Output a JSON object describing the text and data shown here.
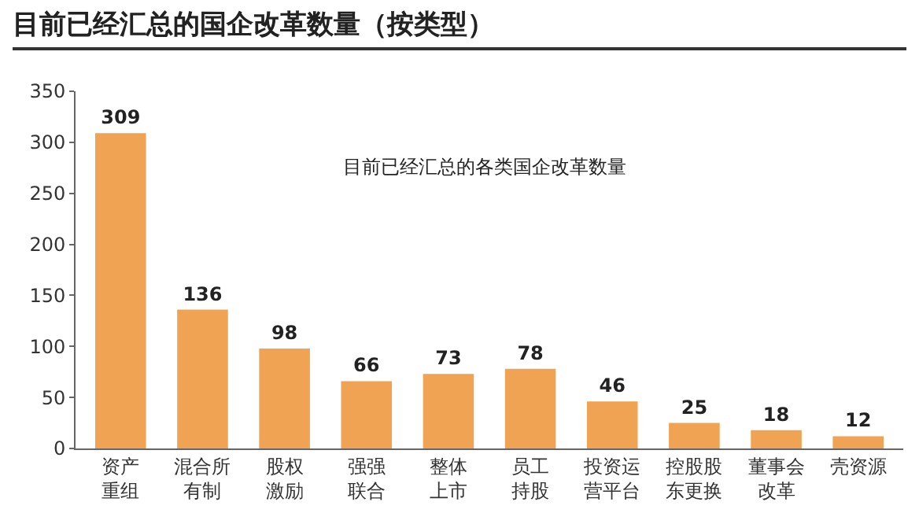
{
  "chart_data": {
    "type": "bar",
    "title": "目前已经汇总的国企改革数量（按类型）",
    "categories": [
      "资产重组",
      "混合所有制",
      "股权激励",
      "强强联合",
      "整体上市",
      "员工持股",
      "投资运营平台",
      "控股股东更换",
      "董事会改革",
      "壳资源"
    ],
    "values": [
      309,
      136,
      98,
      66,
      73,
      78,
      46,
      25,
      18,
      12
    ],
    "color": "#f0a352",
    "ylim": [
      0,
      350
    ],
    "yticks": [
      0,
      50,
      100,
      150,
      200,
      250,
      300,
      350
    ],
    "grid": false,
    "data_labels": true,
    "annotations": [
      "目前已经汇总的各类国企改革数量"
    ]
  }
}
